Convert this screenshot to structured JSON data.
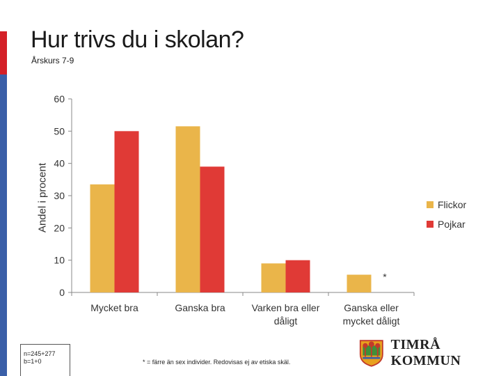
{
  "header": {
    "title": "Hur trivs du i skolan?",
    "subtitle": "Årskurs 7-9"
  },
  "colors": {
    "flickor": "#eab54a",
    "pojkar": "#e03a36",
    "accent_red": "#d42027",
    "accent_blue": "#3a5fa8"
  },
  "chart_data": {
    "type": "bar",
    "ylabel": "Andel i procent",
    "ylim": [
      0,
      60
    ],
    "yticks": [
      "0",
      "10",
      "20",
      "30",
      "40",
      "50",
      "60"
    ],
    "grid": false,
    "legend_position": "right",
    "categories": [
      [
        "Mycket bra"
      ],
      [
        "Ganska bra"
      ],
      [
        "Varken bra eller",
        "dåligt"
      ],
      [
        "Ganska eller",
        "mycket dåligt"
      ]
    ],
    "series": [
      {
        "name": "Flickor",
        "values": [
          33.5,
          51.5,
          9,
          5.5
        ]
      },
      {
        "name": "Pojkar",
        "values": [
          50,
          39,
          10,
          null
        ]
      }
    ],
    "annotation": "*"
  },
  "notes": {
    "sample_line1": "n=245+277",
    "sample_line2": "b=1+0",
    "footnote": "* = färre än sex individer. Redovisas ej av etiska skäl."
  },
  "logo": {
    "text": "TIMRÅ KOMMUN",
    "icon": "timra-coat-of-arms-icon"
  }
}
